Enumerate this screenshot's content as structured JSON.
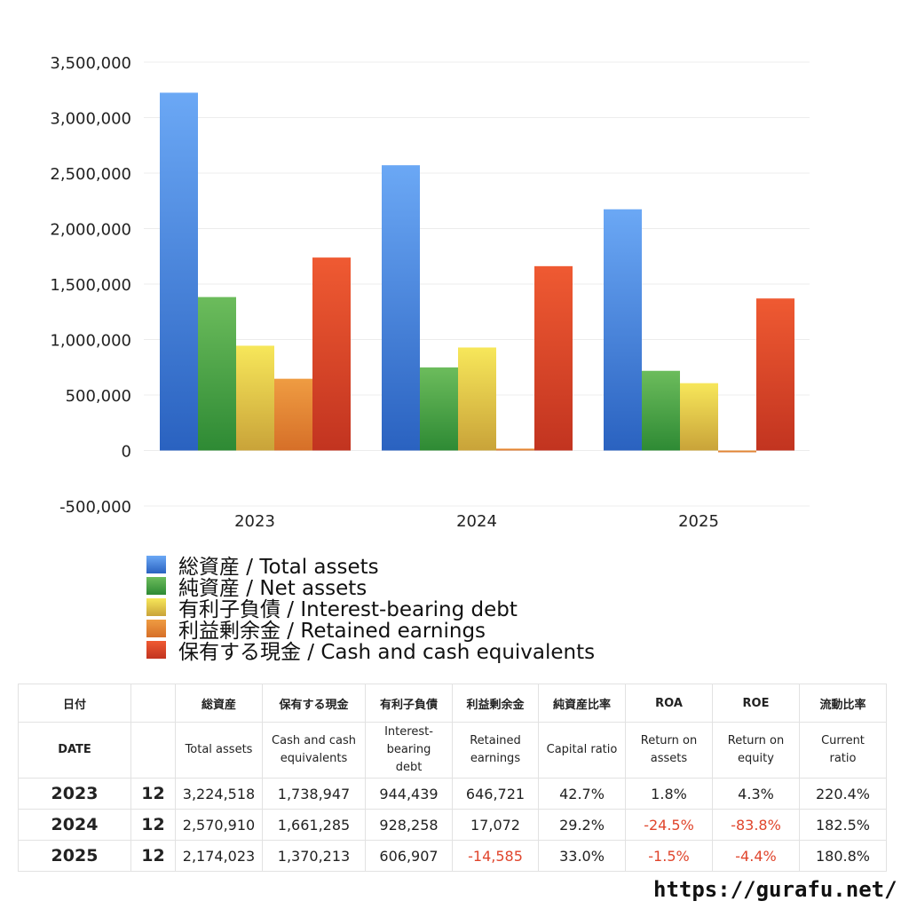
{
  "chart_data": {
    "type": "bar",
    "categories": [
      "2023",
      "2024",
      "2025"
    ],
    "ylim": [
      -500000,
      3500000
    ],
    "yticks": [
      3500000,
      3000000,
      2500000,
      2000000,
      1500000,
      1000000,
      500000,
      0,
      -500000
    ],
    "ytick_labels": [
      "3,500,000",
      "3,000,000",
      "2,500,000",
      "2,000,000",
      "1,500,000",
      "1,000,000",
      "500,000",
      "0",
      "-500,000"
    ],
    "grid": true,
    "legend_position": "bottom-left",
    "series": [
      {
        "name": "総資産 / Total assets",
        "values": [
          3224518,
          2570910,
          2174023
        ],
        "color_top": "#6ba8f5",
        "color_bottom": "#2a62c0"
      },
      {
        "name": "純資産 / Net assets",
        "values": [
          1383000,
          749000,
          718000
        ],
        "color_top": "#6cbc5c",
        "color_bottom": "#2e8a34"
      },
      {
        "name": "有利子負債 / Interest-bearing debt",
        "values": [
          944439,
          928258,
          606907
        ],
        "color_top": "#f7e75a",
        "color_bottom": "#c9a339"
      },
      {
        "name": "利益剰余金 / Retained earnings",
        "values": [
          646721,
          17072,
          -14585
        ],
        "color_top": "#ef9c42",
        "color_bottom": "#d66f28"
      },
      {
        "name": "保有する現金 /  Cash and cash equivalents",
        "values": [
          1738947,
          1661285,
          1370213
        ],
        "color_top": "#ef5a32",
        "color_bottom": "#c23420"
      }
    ]
  },
  "table": {
    "header_jp": [
      "日付",
      "",
      "総資産",
      "保有する現金",
      "有利子負債",
      "利益剰余金",
      "純資産比率",
      "ROA",
      "ROE",
      "流動比率"
    ],
    "header_en": [
      "DATE",
      "",
      "Total assets",
      "Cash and cash\nequivalents",
      "Interest-\nbearing\ndebt",
      "Retained\nearnings",
      "Capital ratio",
      "Return on\nassets",
      "Return on\nequity",
      "Current\nratio"
    ],
    "rows": [
      {
        "year": "2023",
        "month": "12",
        "total_assets": "3,224,518",
        "cash": "1,738,947",
        "debt": "944,439",
        "retained": "646,721",
        "capital_ratio": "42.7%",
        "roa": "1.8%",
        "roe": "4.3%",
        "current_ratio": "220.4%"
      },
      {
        "year": "2024",
        "month": "12",
        "total_assets": "2,570,910",
        "cash": "1,661,285",
        "debt": "928,258",
        "retained": "17,072",
        "capital_ratio": "29.2%",
        "roa": "-24.5%",
        "roe": "-83.8%",
        "current_ratio": "182.5%"
      },
      {
        "year": "2025",
        "month": "12",
        "total_assets": "2,174,023",
        "cash": "1,370,213",
        "debt": "606,907",
        "retained": "-14,585",
        "capital_ratio": "33.0%",
        "roa": "-1.5%",
        "roe": "-4.4%",
        "current_ratio": "180.8%"
      }
    ]
  },
  "site_url": "https://gurafu.net/"
}
